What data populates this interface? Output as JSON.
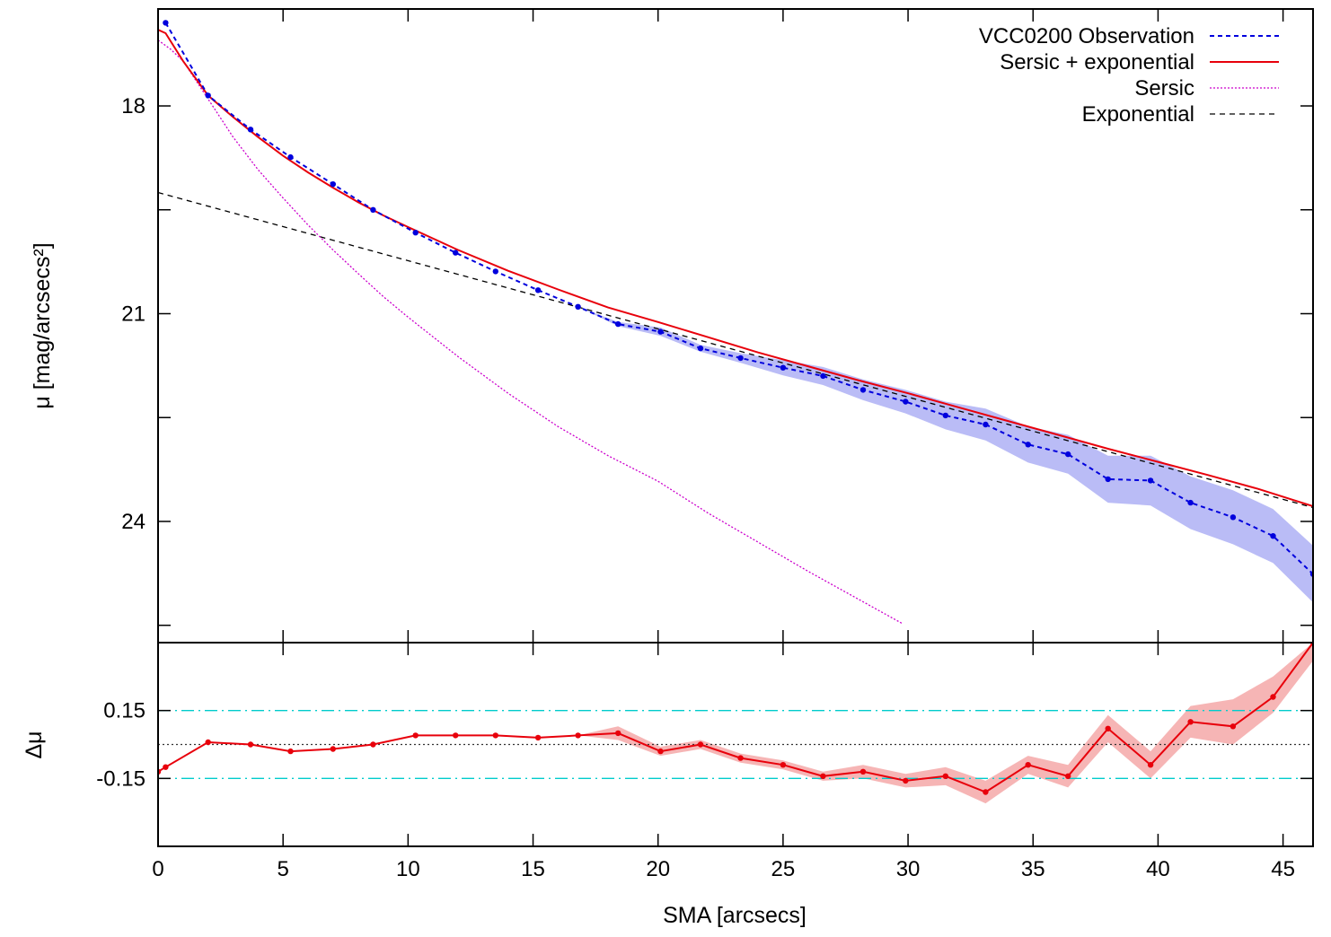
{
  "chart_data": [
    {
      "type": "line",
      "panel": "profile",
      "title": "",
      "xlabel": "",
      "ylabel": "μ [mag/arcsecs²]",
      "xlim": [
        0,
        46.2
      ],
      "ylim": [
        16.6,
        25.75
      ],
      "y_inverted": true,
      "yticks": [
        18,
        21,
        24
      ],
      "ytick_labels": [
        "18",
        "21",
        "24"
      ],
      "legend_position": "top-right",
      "series": [
        {
          "name": "VCC0200 Observation",
          "style": "dotted-with-points",
          "color": "#0000dd",
          "x": [
            0.3,
            2.0,
            3.7,
            5.3,
            7.0,
            8.6,
            10.3,
            11.9,
            13.5,
            15.2,
            16.8,
            18.4,
            20.1,
            21.7,
            23.3,
            25.0,
            26.6,
            28.2,
            29.9,
            31.5,
            33.1,
            34.8,
            36.4,
            38.0,
            39.7,
            41.3,
            43.0,
            44.6,
            46.2
          ],
          "y": [
            16.8,
            17.85,
            18.34,
            18.74,
            19.13,
            19.5,
            19.83,
            20.12,
            20.39,
            20.66,
            20.9,
            21.15,
            21.26,
            21.5,
            21.64,
            21.78,
            21.9,
            22.1,
            22.27,
            22.47,
            22.6,
            22.89,
            23.03,
            23.39,
            23.41,
            23.73,
            23.94,
            24.21,
            24.76
          ],
          "error_band": {
            "lower": [
              16.8,
              17.85,
              18.34,
              18.74,
              19.13,
              19.5,
              19.83,
              20.12,
              20.39,
              20.66,
              20.9,
              21.12,
              21.2,
              21.45,
              21.57,
              21.67,
              21.77,
              21.95,
              22.1,
              22.27,
              22.37,
              22.63,
              22.75,
              23.05,
              23.05,
              23.35,
              23.55,
              23.82,
              24.35
            ],
            "upper": [
              16.8,
              17.85,
              18.34,
              18.74,
              19.13,
              19.5,
              19.83,
              20.12,
              20.39,
              20.66,
              20.9,
              21.18,
              21.32,
              21.55,
              21.71,
              21.89,
              22.03,
              22.25,
              22.44,
              22.67,
              22.83,
              23.15,
              23.31,
              23.73,
              23.77,
              24.11,
              24.33,
              24.6,
              25.17
            ]
          }
        },
        {
          "name": "Sersic + exponential",
          "style": "solid",
          "color": "#e8000b",
          "x": [
            0.0,
            0.3,
            1.0,
            2.0,
            3.0,
            4.0,
            5.0,
            6.0,
            7.0,
            8.0,
            9.0,
            10.0,
            12.0,
            14.0,
            16.0,
            18.0,
            20.0,
            22.0,
            24.0,
            26.0,
            28.0,
            30.0,
            32.0,
            34.0,
            36.0,
            38.0,
            40.0,
            42.0,
            44.0,
            46.2
          ],
          "y": [
            16.9,
            16.95,
            17.35,
            17.85,
            18.16,
            18.45,
            18.72,
            18.96,
            19.18,
            19.39,
            19.58,
            19.75,
            20.08,
            20.38,
            20.65,
            20.91,
            21.12,
            21.34,
            21.56,
            21.76,
            21.96,
            22.15,
            22.35,
            22.55,
            22.75,
            22.95,
            23.14,
            23.33,
            23.53,
            23.78
          ]
        },
        {
          "name": "Sersic",
          "style": "dotted",
          "color": "#cc00cc",
          "x": [
            0.0,
            0.5,
            1.0,
            2.0,
            3.0,
            4.0,
            5.0,
            6.0,
            7.0,
            8.0,
            9.0,
            10.0,
            12.0,
            14.0,
            16.0,
            18.0,
            20.0,
            22.0,
            24.0,
            26.0,
            28.0,
            29.8
          ],
          "y": [
            17.05,
            17.18,
            17.35,
            17.9,
            18.45,
            18.92,
            19.33,
            19.72,
            20.08,
            20.42,
            20.75,
            21.05,
            21.62,
            22.15,
            22.63,
            23.05,
            23.42,
            23.88,
            24.3,
            24.72,
            25.12,
            25.48
          ]
        },
        {
          "name": "Exponential",
          "style": "dashed",
          "color": "#000000",
          "x": [
            0.0,
            46.2
          ],
          "y": [
            19.25,
            23.8
          ]
        }
      ]
    },
    {
      "type": "line",
      "panel": "residual",
      "title": "",
      "xlabel": "SMA [arcsecs]",
      "ylabel": "Δμ",
      "xlim": [
        0,
        46.2
      ],
      "ylim": [
        -0.45,
        0.45
      ],
      "y_inverted": false,
      "xticks": [
        0,
        5,
        10,
        15,
        20,
        25,
        30,
        35,
        40,
        45
      ],
      "xtick_labels": [
        "0",
        "5",
        "10",
        "15",
        "20",
        "25",
        "30",
        "35",
        "40",
        "45"
      ],
      "yticks": [
        0.15,
        -0.15
      ],
      "ytick_labels": [
        "0.15",
        "-0.15"
      ],
      "reference_lines": [
        {
          "y": 0.15,
          "style": "dash-dot",
          "color": "#00cccc"
        },
        {
          "y": -0.15,
          "style": "dash-dot",
          "color": "#00cccc"
        },
        {
          "y": 0.0,
          "style": "dotted",
          "color": "#333333"
        }
      ],
      "series": [
        {
          "style": "solid-with-points",
          "color": "#e8000b",
          "x": [
            0.0,
            0.3,
            2.0,
            3.7,
            5.3,
            7.0,
            8.6,
            10.3,
            11.9,
            13.5,
            15.2,
            16.8,
            18.4,
            20.1,
            21.7,
            23.3,
            25.0,
            26.6,
            28.2,
            29.9,
            31.5,
            33.1,
            34.8,
            36.4,
            38.0,
            39.7,
            41.3,
            43.0,
            44.6,
            46.2
          ],
          "y": [
            -0.12,
            -0.1,
            0.01,
            0.0,
            -0.03,
            -0.02,
            0.0,
            0.04,
            0.04,
            0.04,
            0.03,
            0.04,
            0.05,
            -0.03,
            0.0,
            -0.06,
            -0.09,
            -0.14,
            -0.12,
            -0.16,
            -0.14,
            -0.21,
            -0.09,
            -0.14,
            0.07,
            -0.09,
            0.1,
            0.08,
            0.21,
            0.45
          ],
          "error_band": {
            "lower": [
              -0.12,
              -0.1,
              0.01,
              0.0,
              -0.03,
              -0.02,
              0.0,
              0.04,
              0.04,
              0.04,
              0.03,
              0.04,
              0.02,
              -0.05,
              -0.02,
              -0.08,
              -0.11,
              -0.16,
              -0.15,
              -0.19,
              -0.18,
              -0.26,
              -0.13,
              -0.19,
              0.01,
              -0.15,
              0.03,
              0.0,
              0.14,
              0.37
            ],
            "upper": [
              -0.12,
              -0.1,
              0.01,
              0.0,
              -0.03,
              -0.02,
              0.0,
              0.04,
              0.04,
              0.04,
              0.03,
              0.04,
              0.08,
              -0.01,
              0.02,
              -0.04,
              -0.07,
              -0.12,
              -0.09,
              -0.13,
              -0.1,
              -0.16,
              -0.05,
              -0.09,
              0.13,
              -0.03,
              0.17,
              0.2,
              0.3,
              0.45
            ]
          }
        }
      ]
    }
  ]
}
